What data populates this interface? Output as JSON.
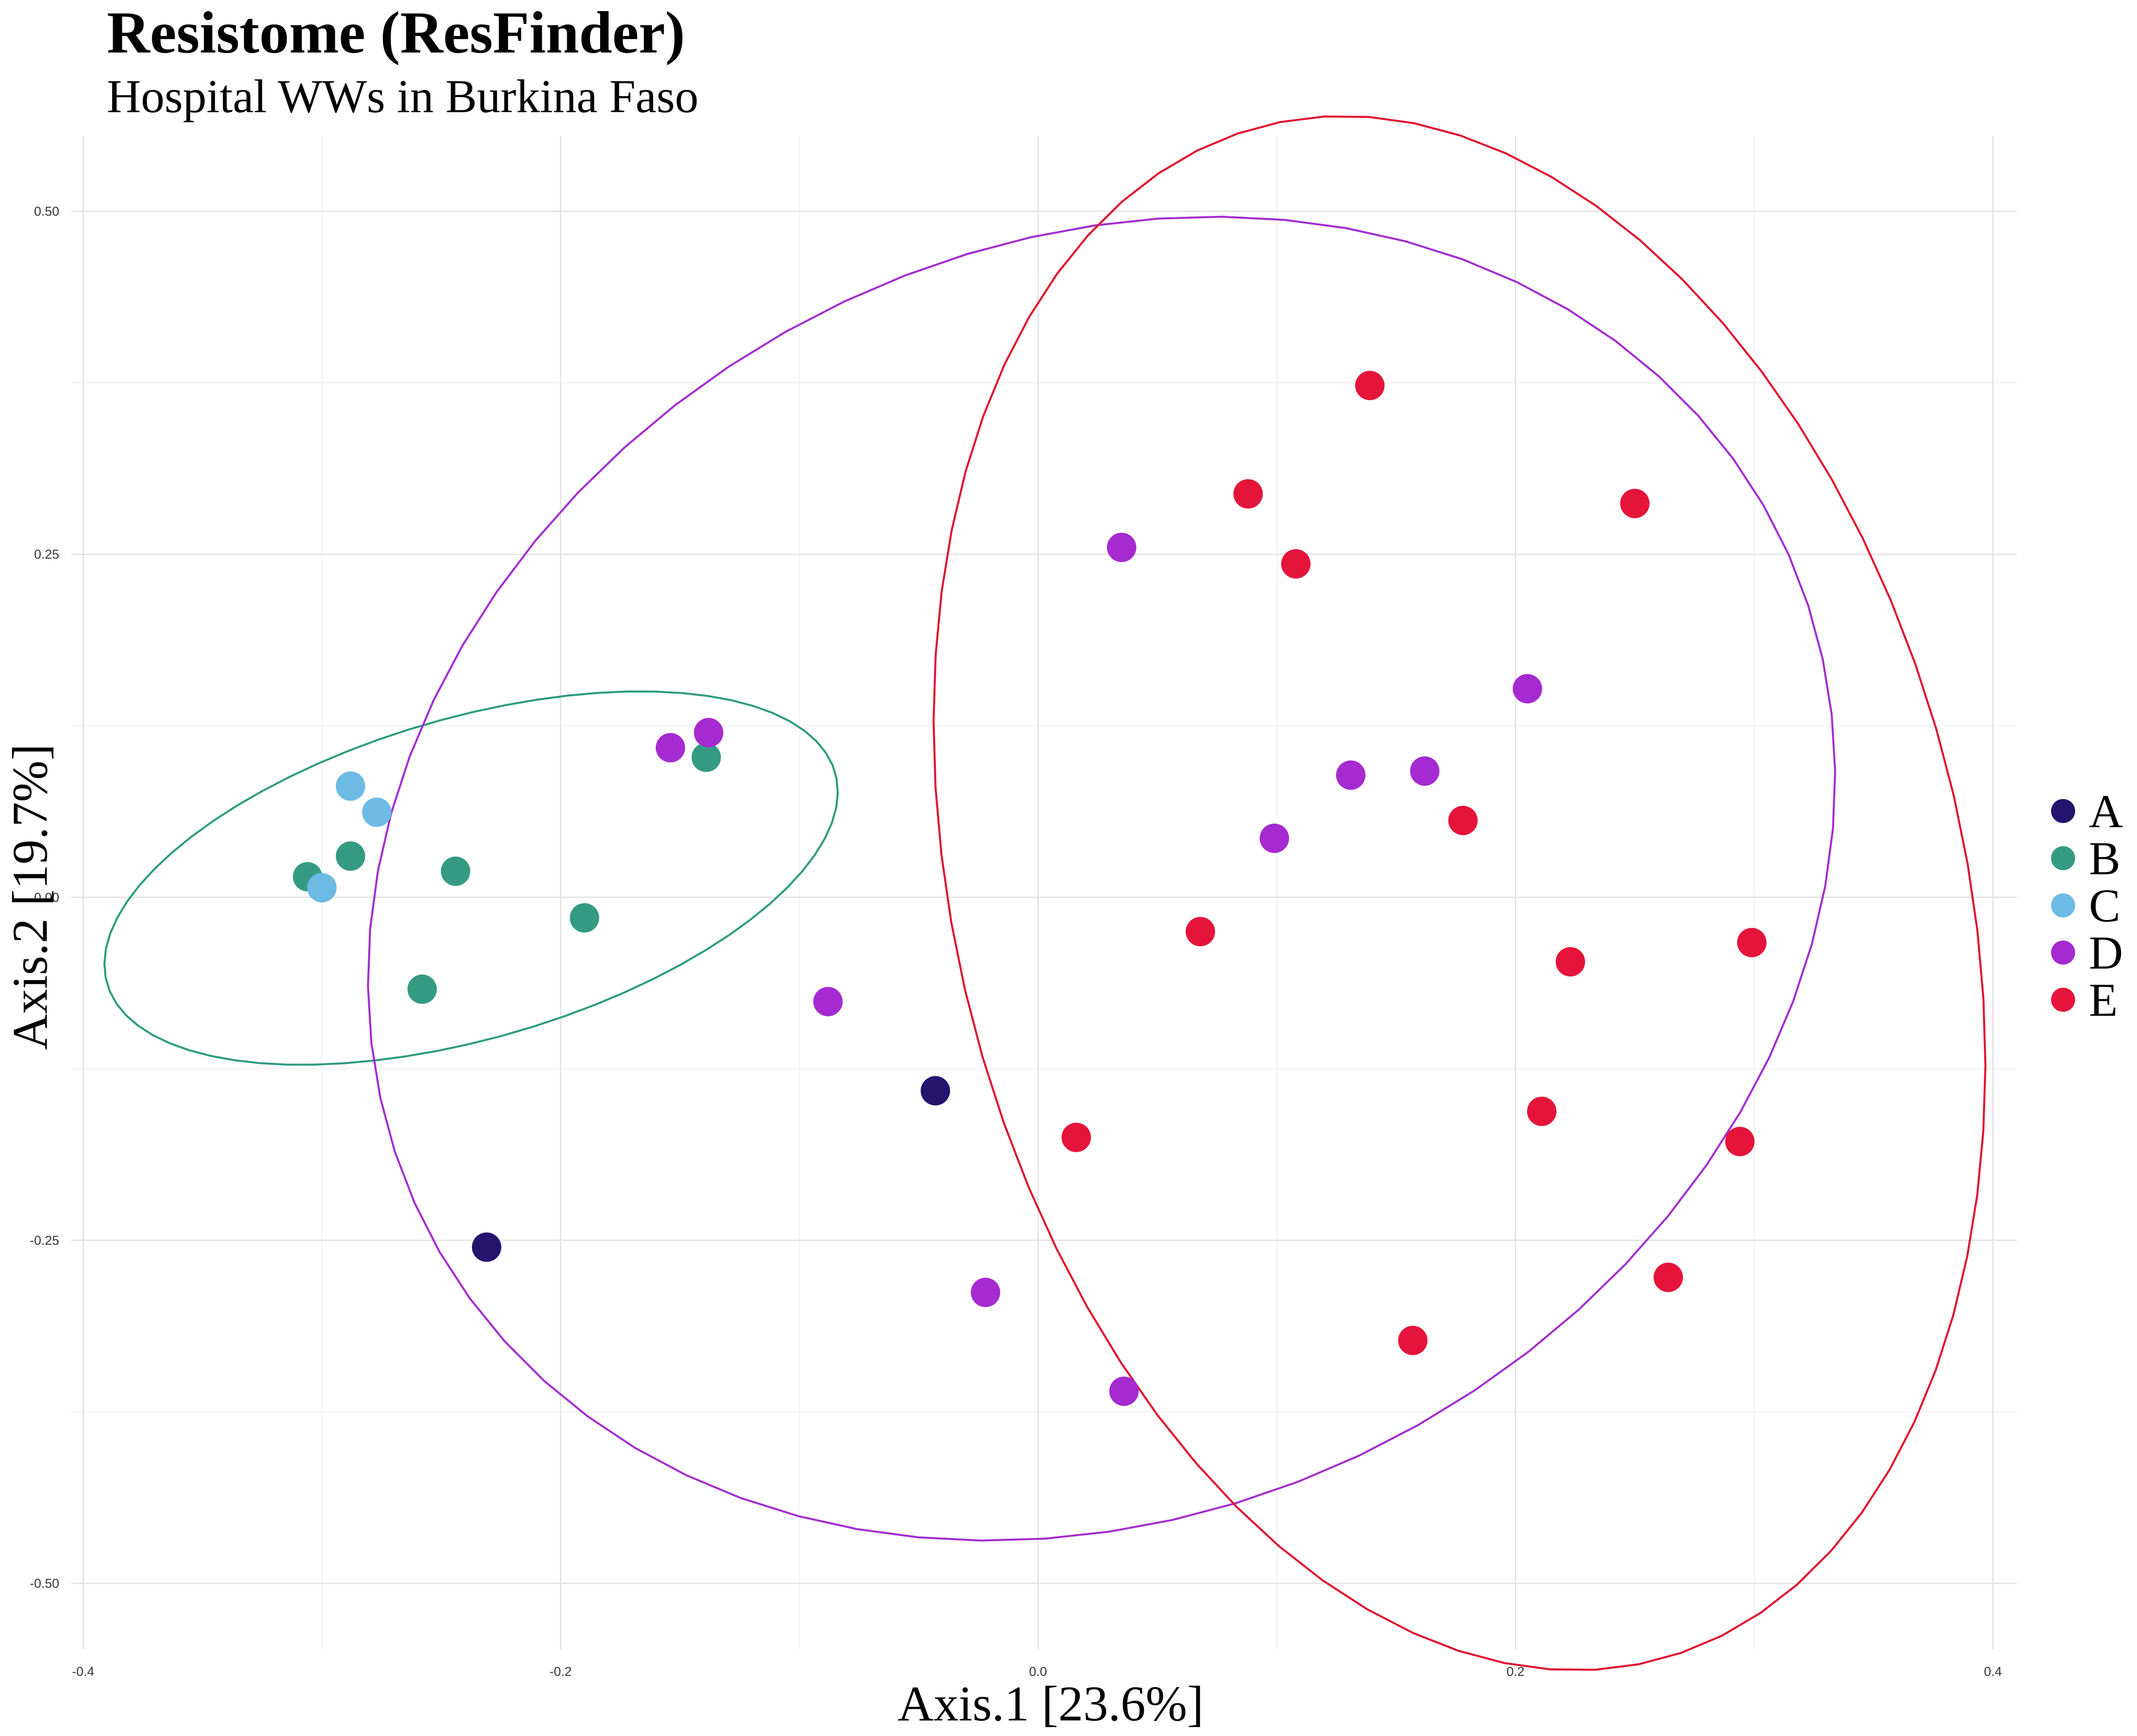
{
  "chart_data": {
    "type": "scatter",
    "title": "Resistome (ResFinder)",
    "subtitle": "Hospital WWs in Burkina Faso",
    "xlabel": "Axis.1   [23.6%]",
    "ylabel": "Axis.2   [19.7%]",
    "xlim": [
      -0.405,
      0.41
    ],
    "ylim": [
      -0.548,
      0.555
    ],
    "x_ticks": [
      -0.4,
      -0.2,
      0.0,
      0.2,
      0.4
    ],
    "x_tick_labels": [
      "-0.4",
      "-0.2",
      "0.0",
      "0.2",
      "0.4"
    ],
    "y_ticks": [
      0.5,
      0.25,
      0.0,
      -0.25,
      -0.5
    ],
    "y_tick_labels": [
      "0.50",
      "0.25",
      "0.00",
      "-0.25",
      "-0.50"
    ],
    "grid": true,
    "legend_position": "right",
    "series": [
      {
        "name": "A",
        "color": "#24146e",
        "points": [
          [
            -0.231,
            -0.255
          ],
          [
            -0.043,
            -0.141
          ]
        ]
      },
      {
        "name": "B",
        "color": "#349b82",
        "points": [
          [
            -0.306,
            0.015
          ],
          [
            -0.288,
            0.03
          ],
          [
            -0.244,
            0.019
          ],
          [
            -0.19,
            -0.015
          ],
          [
            -0.258,
            -0.067
          ],
          [
            -0.139,
            0.102
          ]
        ]
      },
      {
        "name": "C",
        "color": "#6dbbe5",
        "points": [
          [
            -0.288,
            0.081
          ],
          [
            -0.277,
            0.062
          ],
          [
            -0.3,
            0.007
          ]
        ]
      },
      {
        "name": "D",
        "color": "#a52ad0",
        "points": [
          [
            -0.154,
            0.109
          ],
          [
            -0.138,
            0.12
          ],
          [
            0.035,
            0.255
          ],
          [
            0.205,
            0.152
          ],
          [
            0.131,
            0.089
          ],
          [
            0.162,
            0.092
          ],
          [
            0.099,
            0.043
          ],
          [
            -0.088,
            -0.076
          ],
          [
            -0.022,
            -0.288
          ],
          [
            0.036,
            -0.36
          ]
        ]
      },
      {
        "name": "E",
        "color": "#e5143a",
        "points": [
          [
            0.139,
            0.373
          ],
          [
            0.088,
            0.294
          ],
          [
            0.108,
            0.243
          ],
          [
            0.25,
            0.287
          ],
          [
            0.178,
            0.056
          ],
          [
            0.068,
            -0.025
          ],
          [
            0.223,
            -0.047
          ],
          [
            0.299,
            -0.033
          ],
          [
            0.016,
            -0.175
          ],
          [
            0.211,
            -0.156
          ],
          [
            0.294,
            -0.178
          ],
          [
            0.264,
            -0.277
          ],
          [
            0.157,
            -0.323
          ]
        ]
      }
    ],
    "ellipses": [
      {
        "group": "B",
        "color": "#2e9b7f"
      },
      {
        "group": "D",
        "color": "#a22ecf"
      },
      {
        "group": "E",
        "color": "#e0102f"
      }
    ]
  }
}
